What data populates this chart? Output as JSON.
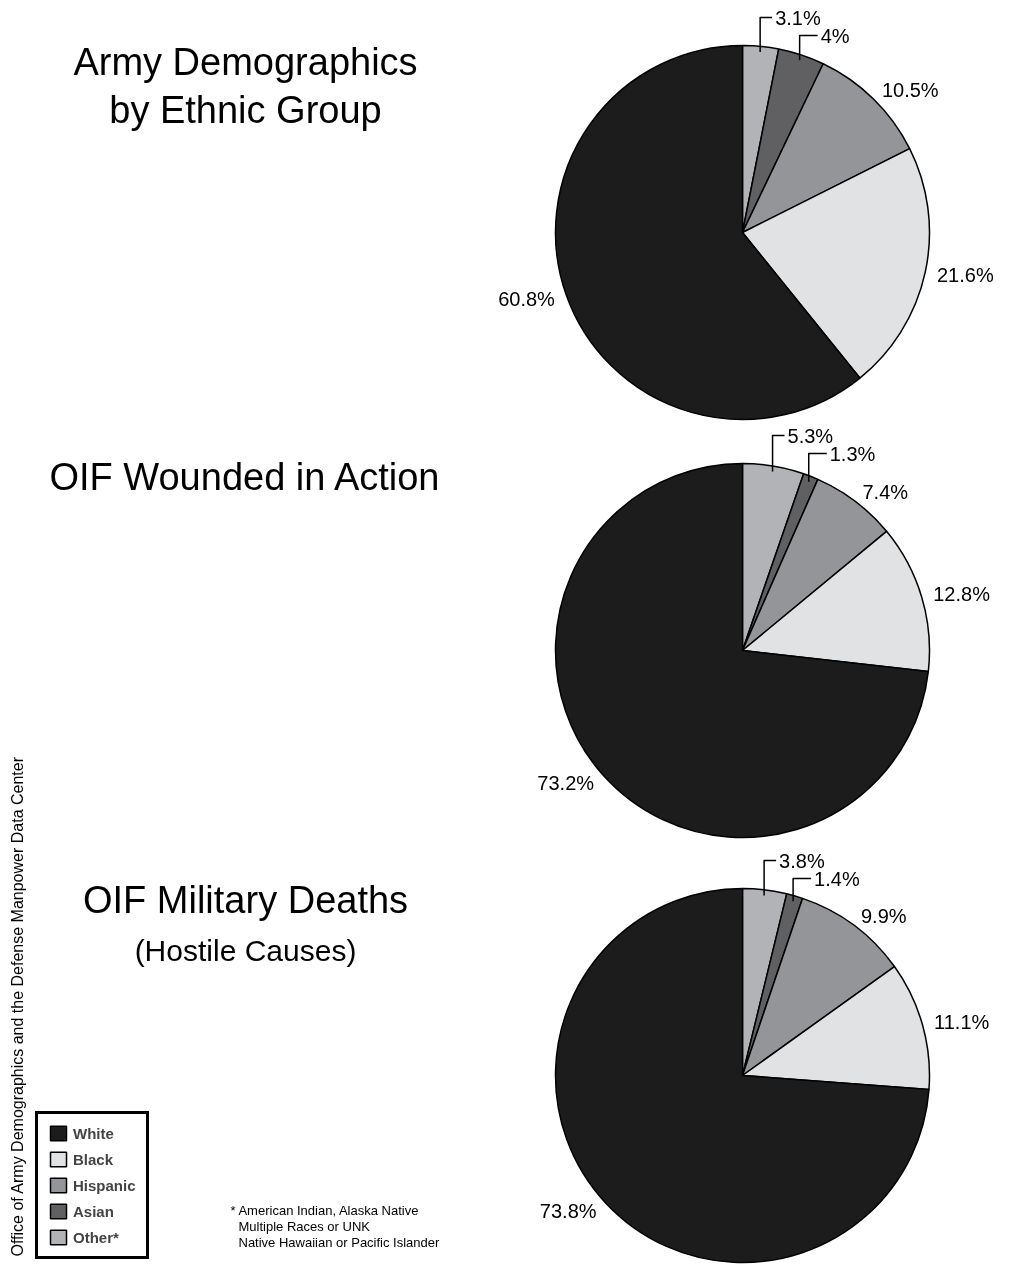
{
  "chart_data": [
    {
      "type": "pie",
      "title": "Army Demographics\nby Ethnic Group",
      "categories": [
        "Other*",
        "Asian",
        "Hispanic",
        "Black",
        "White"
      ],
      "values": [
        3.1,
        4,
        10.5,
        21.6,
        60.8
      ],
      "value_labels": [
        "3.1%",
        "4%",
        "10.5%",
        "21.6%",
        "60.8%"
      ],
      "colors": [
        "#b1b3b6",
        "#606062",
        "#939598",
        "#e1e2e4",
        "#1c1c1c"
      ],
      "legend": "bottom left"
    },
    {
      "type": "pie",
      "title": "OIF Wounded in Action",
      "categories": [
        null,
        null,
        null,
        null,
        null
      ],
      "values": [
        5.3,
        1.3,
        7.4,
        12.8,
        73.2
      ],
      "value_labels": [
        "5.3%",
        "1.3%",
        "7.4%",
        "12.8%",
        "73.2%"
      ],
      "colors": [
        "#b1b3b6",
        "#606062",
        "#939598",
        "#e1e2e4",
        "#1c1c1c"
      ]
    },
    {
      "type": "pie",
      "title": "OIF Military Deaths",
      "subtitle": "(Hostile Causes)",
      "categories": [
        null,
        null,
        null,
        null,
        null
      ],
      "values": [
        3.8,
        1.4,
        9.9,
        11.1,
        73.8
      ],
      "value_labels": [
        "3.8%",
        "1.4%",
        "9.9%",
        "11.1%",
        "73.8%"
      ],
      "colors": [
        "#b1b3b6",
        "#606062",
        "#939598",
        "#e1e2e4",
        "#1c1c1c"
      ],
      "annotations": [
        "Office of Army Demographics and the Defense Manpower Data Center",
        "* American Indian, Alaska Native",
        "Multiple Races or UNK",
        "Native Hawaiian or Pacific Islander"
      ]
    }
  ]
}
